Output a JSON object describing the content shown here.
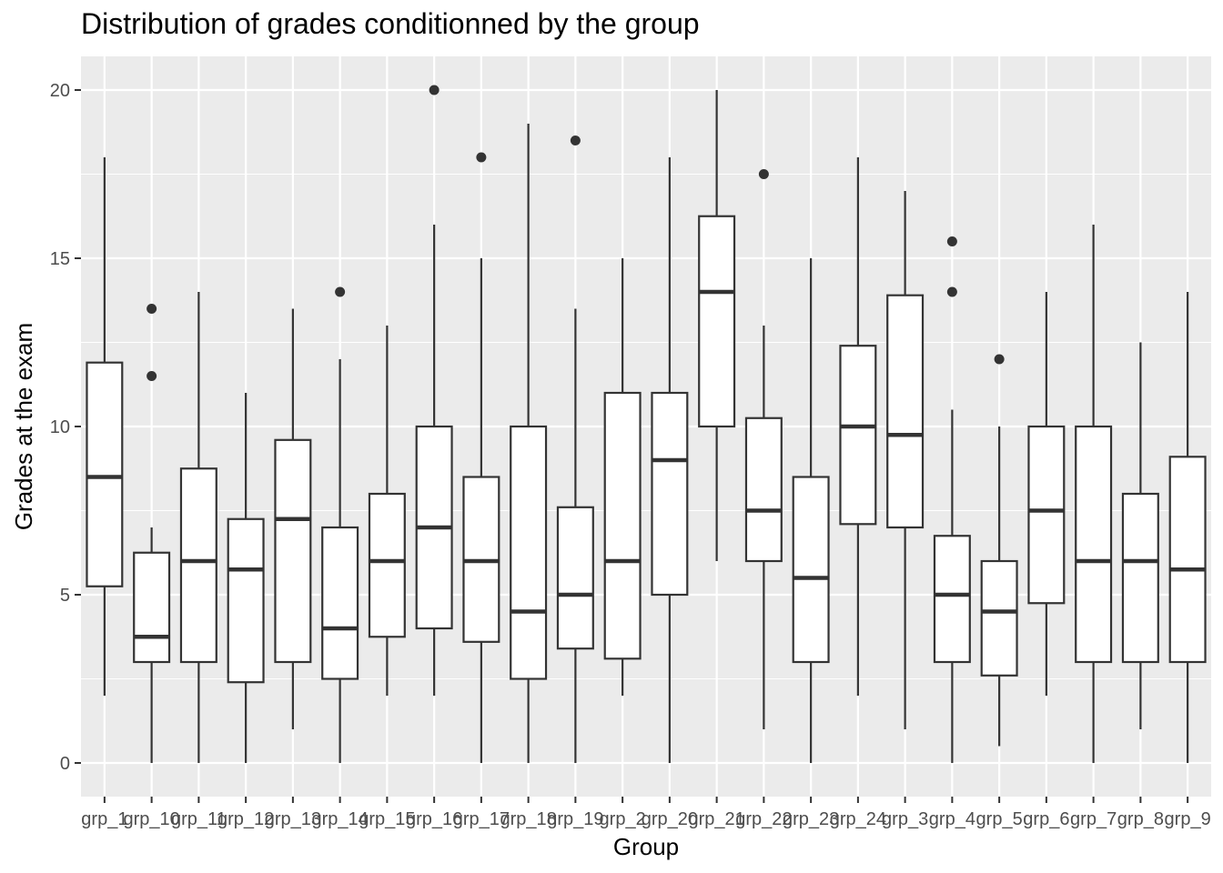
{
  "chart_data": {
    "type": "boxplot",
    "title": "Distribution of grades conditionned by the group",
    "xlabel": "Group",
    "ylabel": "Grades at the exam",
    "ylim": [
      -1,
      21
    ],
    "yticks": [
      0,
      5,
      10,
      15,
      20
    ],
    "grid": true,
    "categories": [
      "grp_1",
      "grp_10",
      "grp_11",
      "grp_12",
      "grp_13",
      "grp_14",
      "grp_15",
      "grp_16",
      "grp_17",
      "grp_18",
      "grp_19",
      "grp_2",
      "grp_20",
      "grp_21",
      "grp_22",
      "grp_23",
      "grp_24",
      "grp_3",
      "grp_4",
      "grp_5",
      "grp_6",
      "grp_7",
      "grp_8",
      "grp_9"
    ],
    "boxes": [
      {
        "min": 2,
        "q1": 5.25,
        "median": 8.5,
        "q3": 11.9,
        "max": 18,
        "outliers": []
      },
      {
        "min": 0,
        "q1": 3,
        "median": 3.75,
        "q3": 6.25,
        "max": 7,
        "outliers": [
          11.5,
          13.5
        ]
      },
      {
        "min": 0,
        "q1": 3,
        "median": 6,
        "q3": 8.75,
        "max": 14,
        "outliers": []
      },
      {
        "min": 0,
        "q1": 2.4,
        "median": 5.75,
        "q3": 7.25,
        "max": 11,
        "outliers": []
      },
      {
        "min": 1,
        "q1": 3,
        "median": 7.25,
        "q3": 9.6,
        "max": 13.5,
        "outliers": []
      },
      {
        "min": 0,
        "q1": 2.5,
        "median": 4,
        "q3": 7,
        "max": 12,
        "outliers": [
          14
        ]
      },
      {
        "min": 2,
        "q1": 3.75,
        "median": 6,
        "q3": 8,
        "max": 13,
        "outliers": []
      },
      {
        "min": 2,
        "q1": 4,
        "median": 7,
        "q3": 10,
        "max": 16,
        "outliers": [
          20
        ]
      },
      {
        "min": 0,
        "q1": 3.6,
        "median": 6,
        "q3": 8.5,
        "max": 15,
        "outliers": [
          18
        ]
      },
      {
        "min": 0,
        "q1": 2.5,
        "median": 4.5,
        "q3": 10,
        "max": 19,
        "outliers": []
      },
      {
        "min": 0,
        "q1": 3.4,
        "median": 5,
        "q3": 7.6,
        "max": 13.5,
        "outliers": [
          18.5
        ]
      },
      {
        "min": 2,
        "q1": 3.1,
        "median": 6,
        "q3": 11,
        "max": 15,
        "outliers": []
      },
      {
        "min": 0,
        "q1": 5,
        "median": 9,
        "q3": 11,
        "max": 18,
        "outliers": []
      },
      {
        "min": 6,
        "q1": 10,
        "median": 14,
        "q3": 16.25,
        "max": 20,
        "outliers": []
      },
      {
        "min": 1,
        "q1": 6,
        "median": 7.5,
        "q3": 10.25,
        "max": 13,
        "outliers": [
          17.5
        ]
      },
      {
        "min": 0,
        "q1": 3,
        "median": 5.5,
        "q3": 8.5,
        "max": 15,
        "outliers": []
      },
      {
        "min": 2,
        "q1": 7.1,
        "median": 10,
        "q3": 12.4,
        "max": 18,
        "outliers": []
      },
      {
        "min": 1,
        "q1": 7,
        "median": 9.75,
        "q3": 13.9,
        "max": 17,
        "outliers": []
      },
      {
        "min": 0,
        "q1": 3,
        "median": 5,
        "q3": 6.75,
        "max": 10.5,
        "outliers": [
          14,
          15.5
        ]
      },
      {
        "min": 0.5,
        "q1": 2.6,
        "median": 4.5,
        "q3": 6,
        "max": 10,
        "outliers": [
          12
        ]
      },
      {
        "min": 2,
        "q1": 4.75,
        "median": 7.5,
        "q3": 10,
        "max": 14,
        "outliers": []
      },
      {
        "min": 0,
        "q1": 3,
        "median": 6,
        "q3": 10,
        "max": 16,
        "outliers": []
      },
      {
        "min": 1,
        "q1": 3,
        "median": 6,
        "q3": 8,
        "max": 12.5,
        "outliers": []
      },
      {
        "min": 0,
        "q1": 3,
        "median": 5.75,
        "q3": 9.1,
        "max": 14,
        "outliers": []
      }
    ],
    "colors": {
      "panel": "#ebebeb",
      "grid": "#ffffff",
      "box_fill": "#ffffff",
      "stroke": "#333333",
      "tick_text": "#4d4d4d"
    }
  }
}
